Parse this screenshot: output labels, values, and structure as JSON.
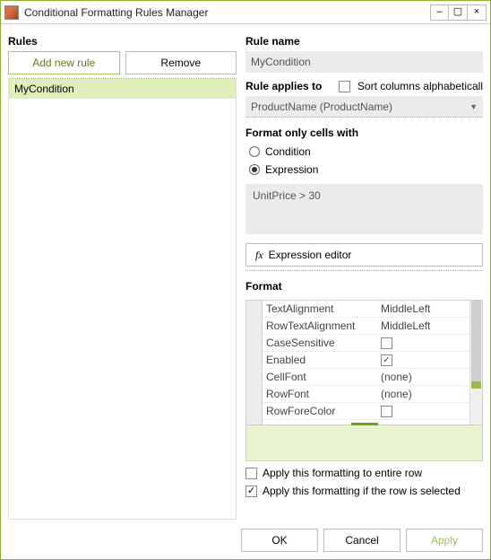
{
  "window": {
    "title": "Conditional Formatting Rules Manager"
  },
  "left": {
    "heading": "Rules",
    "add_btn": "Add new rule",
    "remove_btn": "Remove",
    "rules": [
      "MyCondition"
    ]
  },
  "right": {
    "name_label": "Rule name",
    "name_value": "MyCondition",
    "applies_label": "Rule applies to",
    "sort_alpha_label": "Sort columns alphabeticall",
    "sort_alpha_checked": false,
    "applies_value": "ProductName (ProductName)",
    "cells_with_label": "Format only cells with",
    "radio_condition": "Condition",
    "radio_expression": "Expression",
    "radio_selected": "expression",
    "expression_text": "UnitPrice > 30",
    "expr_editor_btn": "Expression editor",
    "format_label": "Format",
    "props": [
      {
        "name": "TextAlignment",
        "value": "MiddleLeft",
        "type": "text"
      },
      {
        "name": "RowTextAlignment",
        "value": "MiddleLeft",
        "type": "text"
      },
      {
        "name": "CaseSensitive",
        "value": false,
        "type": "bool"
      },
      {
        "name": "Enabled",
        "value": true,
        "type": "bool"
      },
      {
        "name": "CellFont",
        "value": "(none)",
        "type": "text"
      },
      {
        "name": "RowFont",
        "value": "(none)",
        "type": "text"
      },
      {
        "name": "RowForeColor",
        "value": "",
        "type": "color"
      }
    ],
    "preview_bg": "#e7f4cf",
    "apply_entire_row_label": "Apply this formatting to entire row",
    "apply_entire_row_checked": false,
    "apply_if_selected_label": "Apply this formatting if the row is selected",
    "apply_if_selected_checked": true
  },
  "footer": {
    "ok": "OK",
    "cancel": "Cancel",
    "apply": "Apply"
  },
  "colors": {
    "accent": "#8ab22f",
    "rule_selected_bg": "#e0efb9",
    "input_bg": "#ebebeb"
  }
}
